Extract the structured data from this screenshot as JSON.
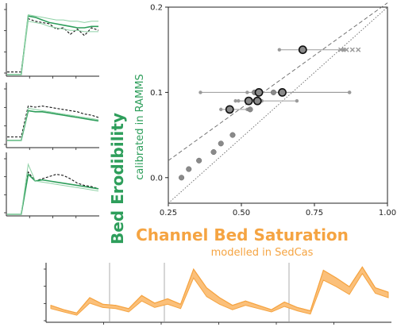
{
  "chart_data": [
    {
      "type": "scatter",
      "title": "",
      "xlabel": "Channel Bed Saturation",
      "xlabel_sub": "modelled in SedCas",
      "ylabel": "Bed Erodibility",
      "ylabel_sub": "calibrated in RAMMS",
      "xlim": [
        0.25,
        1.0
      ],
      "ylim": [
        -0.03,
        0.2
      ],
      "xticks": [
        "0.25",
        "0.50",
        "0.75",
        "1.00"
      ],
      "yticks": [
        "0.0",
        "0.1",
        "0.2"
      ],
      "xtick_values": [
        0.25,
        0.5,
        0.75,
        1.0
      ],
      "ytick_values": [
        0.0,
        0.1,
        0.2
      ],
      "grid": false,
      "small_points": {
        "x": [
          0.295,
          0.32,
          0.355,
          0.405,
          0.43,
          0.47,
          0.53,
          0.545,
          0.61
        ],
        "y": [
          0.0,
          0.01,
          0.02,
          0.03,
          0.04,
          0.05,
          0.08,
          0.1,
          0.1
        ]
      },
      "main_points": {
        "x": [
          0.46,
          0.525,
          0.555,
          0.56,
          0.64,
          0.71
        ],
        "y": [
          0.08,
          0.09,
          0.09,
          0.1,
          0.1,
          0.15
        ],
        "xerr_low": [
          0.43,
          0.48,
          0.49,
          0.36,
          0.52,
          0.63
        ],
        "xerr_high": [
          0.52,
          0.57,
          0.69,
          0.87,
          0.87,
          0.85
        ]
      },
      "x_markers": {
        "x": [
          0.84,
          0.86,
          0.88,
          0.9
        ],
        "y": [
          0.15,
          0.15,
          0.15,
          0.15
        ]
      },
      "fit_lines": [
        {
          "style": "dashed",
          "x": [
            0.25,
            1.0
          ],
          "y": [
            0.02,
            0.205
          ]
        },
        {
          "style": "dotted",
          "x": [
            0.25,
            1.0
          ],
          "y": [
            -0.03,
            0.2
          ]
        }
      ]
    },
    {
      "type": "line",
      "title": "",
      "panel": "top-left inset",
      "series": [
        {
          "style": "dashed-black",
          "values": [
            0.04,
            0.04,
            0.04,
            0.86,
            0.82,
            0.8,
            0.78,
            0.7,
            0.72,
            0.62,
            0.7,
            0.6,
            0.72,
            0.68
          ]
        },
        {
          "style": "green-dark",
          "values": [
            0.0,
            0.0,
            0.0,
            0.9,
            0.88,
            0.84,
            0.8,
            0.78,
            0.76,
            0.74,
            0.72,
            0.72,
            0.74,
            0.74
          ]
        },
        {
          "style": "green-light",
          "values": [
            0.0,
            0.0,
            0.0,
            0.92,
            0.9,
            0.88,
            0.86,
            0.84,
            0.84,
            0.82,
            0.82,
            0.8,
            0.82,
            0.82
          ]
        },
        {
          "style": "green-light",
          "values": [
            0.0,
            0.0,
            0.0,
            0.82,
            0.8,
            0.78,
            0.74,
            0.72,
            0.7,
            0.68,
            0.68,
            0.66,
            0.66,
            0.66
          ]
        }
      ]
    },
    {
      "type": "line",
      "title": "",
      "panel": "middle-left inset",
      "series": [
        {
          "style": "dashed-black",
          "values": [
            0.16,
            0.16,
            0.16,
            0.7,
            0.68,
            0.7,
            0.68,
            0.66,
            0.64,
            0.62,
            0.6,
            0.56,
            0.54,
            0.5
          ]
        },
        {
          "style": "green-dark",
          "values": [
            0.1,
            0.1,
            0.1,
            0.62,
            0.6,
            0.6,
            0.58,
            0.56,
            0.54,
            0.52,
            0.5,
            0.48,
            0.46,
            0.44
          ]
        },
        {
          "style": "green-light",
          "values": [
            0.1,
            0.1,
            0.1,
            0.66,
            0.64,
            0.62,
            0.6,
            0.58,
            0.56,
            0.54,
            0.52,
            0.5,
            0.48,
            0.46
          ]
        }
      ]
    },
    {
      "type": "line",
      "title": "",
      "panel": "bottom-left inset",
      "series": [
        {
          "style": "dashed-black",
          "values": [
            0.0,
            0.0,
            0.0,
            0.76,
            0.6,
            0.64,
            0.68,
            0.72,
            0.7,
            0.64,
            0.56,
            0.52,
            0.5,
            0.46
          ]
        },
        {
          "style": "green-dark",
          "values": [
            0.0,
            0.0,
            0.0,
            0.72,
            0.6,
            0.62,
            0.6,
            0.58,
            0.56,
            0.54,
            0.52,
            0.5,
            0.48,
            0.46
          ]
        },
        {
          "style": "green-light",
          "values": [
            0.0,
            0.0,
            0.0,
            0.9,
            0.6,
            0.58,
            0.56,
            0.54,
            0.52,
            0.5,
            0.48,
            0.46,
            0.44,
            0.42
          ]
        }
      ]
    },
    {
      "type": "area",
      "title": "",
      "panel": "bottom strip",
      "series": [
        {
          "name": "",
          "upper": [
            0.28,
            0.2,
            0.14,
            0.42,
            0.3,
            0.28,
            0.22,
            0.46,
            0.32,
            0.4,
            0.3,
            0.94,
            0.6,
            0.42,
            0.28,
            0.36,
            0.28,
            0.2,
            0.34,
            0.24,
            0.18,
            0.92,
            0.78,
            0.62,
            0.98,
            0.6,
            0.52
          ],
          "lower": [
            0.22,
            0.16,
            0.1,
            0.32,
            0.24,
            0.22,
            0.16,
            0.36,
            0.24,
            0.3,
            0.22,
            0.78,
            0.44,
            0.3,
            0.2,
            0.28,
            0.22,
            0.16,
            0.26,
            0.18,
            0.12,
            0.74,
            0.62,
            0.48,
            0.86,
            0.5,
            0.42
          ]
        }
      ]
    }
  ],
  "colors": {
    "green": "#2e9e5b",
    "green_light": "#8fd1a6",
    "orange": "#f5a442",
    "orange_fill": "#fbc07a",
    "grey": "#808080"
  }
}
